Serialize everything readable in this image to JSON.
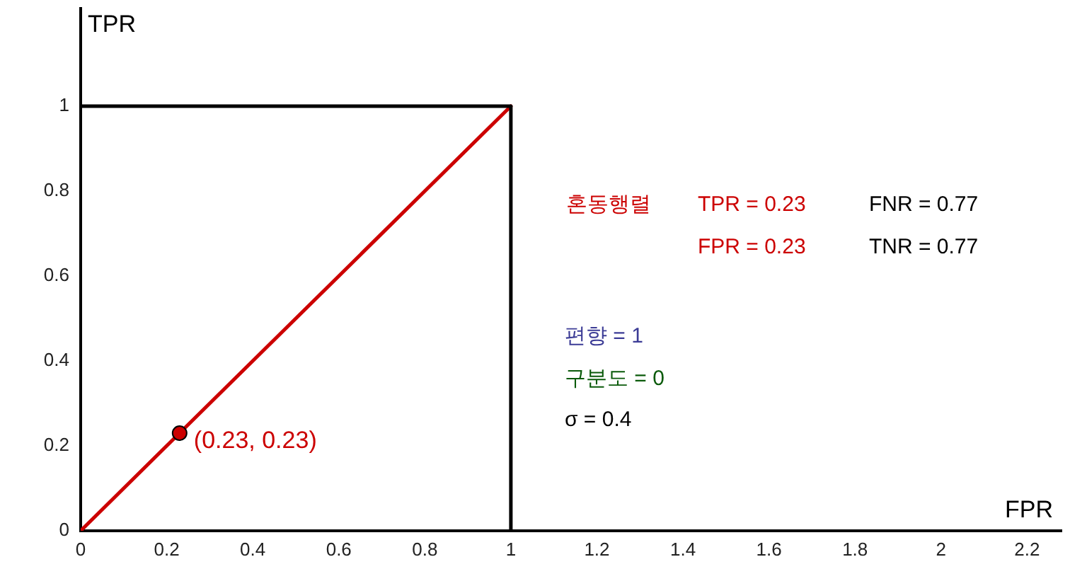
{
  "chart_data": {
    "type": "line",
    "xlabel": "FPR",
    "ylabel": "TPR",
    "xlim": [
      0,
      2.28
    ],
    "ylim": [
      0,
      1.23
    ],
    "xticks": [
      0,
      0.2,
      0.4,
      0.6,
      0.8,
      1,
      1.2,
      1.4,
      1.6,
      1.8,
      2,
      2.2
    ],
    "yticks": [
      0,
      0.2,
      0.4,
      0.6,
      0.8,
      1
    ],
    "grid": false,
    "legend": false,
    "series": [
      {
        "type": "line",
        "color": "#000000",
        "x": [
          0,
          1,
          1
        ],
        "values": [
          1,
          1,
          0
        ],
        "marker": "none"
      },
      {
        "type": "line",
        "color": "#cc0000",
        "x": [
          0,
          1
        ],
        "values": [
          0,
          1
        ],
        "marker": "none"
      },
      {
        "type": "scatter",
        "color": "#cc0000",
        "x": [
          0.23
        ],
        "values": [
          0.23
        ],
        "marker": "circle"
      }
    ],
    "annotations": [
      {
        "text": "(0.23, 0.23)",
        "x": 0.23,
        "y": 0.23
      },
      "혼동행렬",
      "TPR = 0.23",
      "FNR = 0.77",
      "FPR = 0.23",
      "TNR = 0.77",
      "편향 = 1",
      "구분도 = 0",
      "σ = 0.4"
    ]
  }
}
